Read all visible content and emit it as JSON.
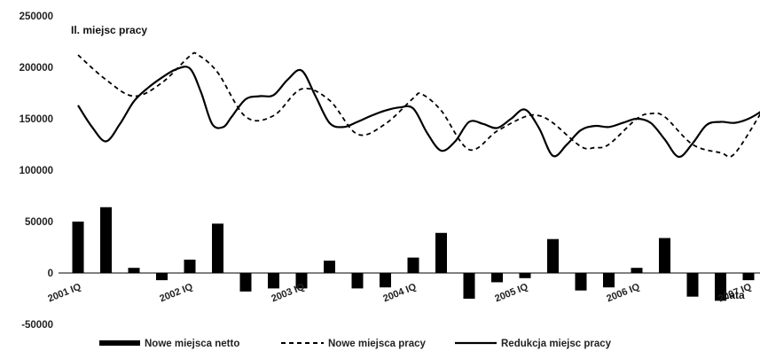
{
  "chart_data": {
    "type": "bar",
    "title": "Il. miejsc pracy",
    "xlabel": "Lata",
    "ylabel": "",
    "ylim": [
      -50000,
      250000
    ],
    "yticks": [
      "250000",
      "200000",
      "150000",
      "100000",
      "50000",
      "0",
      "-50000"
    ],
    "ytick_values": [
      250000,
      200000,
      150000,
      100000,
      50000,
      0,
      -50000
    ],
    "xtick_labels": [
      "2001 IQ",
      "2002 IQ",
      "2003 IQ",
      "2004 IQ",
      "2005 IQ",
      "2006 IQ",
      "2007 IQ"
    ],
    "xtick_indices": [
      0,
      4,
      8,
      12,
      16,
      20,
      24
    ],
    "bars": {
      "name": "Nowe miejsca netto",
      "values": [
        50000,
        64000,
        5000,
        -7000,
        13000,
        48000,
        -18000,
        -15000,
        -15000,
        12000,
        -15000,
        -14000,
        15000,
        39000,
        -25000,
        -9000,
        -5000,
        33000,
        -17000,
        -14000,
        5000,
        34000,
        -23000,
        -27000,
        -7000
      ]
    },
    "series": [
      {
        "name": "Nowe miejsca pracy",
        "style": "dashed",
        "x": [
          0,
          1,
          2,
          3,
          4,
          4.3,
          5,
          6,
          7,
          8,
          9,
          10,
          11,
          12,
          12.3,
          13,
          14,
          15,
          16,
          16.5,
          17,
          18,
          18.5,
          19,
          20,
          20.5,
          21,
          22,
          23,
          23.5,
          24.5
        ],
        "values": [
          212000,
          188000,
          172000,
          185000,
          211000,
          212000,
          195000,
          152000,
          153000,
          179000,
          168000,
          135000,
          145000,
          170000,
          174000,
          158000,
          120000,
          138000,
          152000,
          153000,
          146000,
          123000,
          122000,
          125000,
          150000,
          155000,
          152000,
          125000,
          117000,
          116000,
          158000
        ]
      },
      {
        "name": "Redukcja miejsc pracy",
        "style": "solid",
        "x": [
          0,
          0.5,
          1,
          1.5,
          2,
          2.5,
          3,
          3.5,
          4,
          4.4,
          4.8,
          5.2,
          5.5,
          6,
          6.5,
          7,
          7.5,
          8,
          8.5,
          9,
          9.5,
          10,
          10.5,
          11,
          11.5,
          12,
          12.5,
          13,
          13.5,
          14,
          14.5,
          15,
          15.5,
          16,
          16.5,
          17,
          17.5,
          18,
          18.5,
          19,
          19.5,
          20,
          20.5,
          21,
          21.5,
          22,
          22.5,
          23,
          23.5,
          24,
          24.5,
          25
        ],
        "values": [
          163000,
          142000,
          128000,
          145000,
          167000,
          180000,
          190000,
          198000,
          199000,
          176000,
          145000,
          142000,
          152000,
          169000,
          172000,
          173000,
          188000,
          197000,
          172000,
          146000,
          142000,
          147000,
          153000,
          158000,
          161000,
          160000,
          136000,
          119000,
          128000,
          147000,
          145000,
          141000,
          150000,
          159000,
          141000,
          114000,
          125000,
          139000,
          143000,
          142000,
          146000,
          150000,
          146000,
          130000,
          113000,
          126000,
          144000,
          147000,
          146000,
          150000,
          158000,
          169000
        ]
      }
    ],
    "legend": {
      "placement": "bottom",
      "entries": [
        "Nowe miejsca netto",
        "Nowe miejsca pracy",
        "Redukcja miejsc pracy"
      ]
    }
  }
}
